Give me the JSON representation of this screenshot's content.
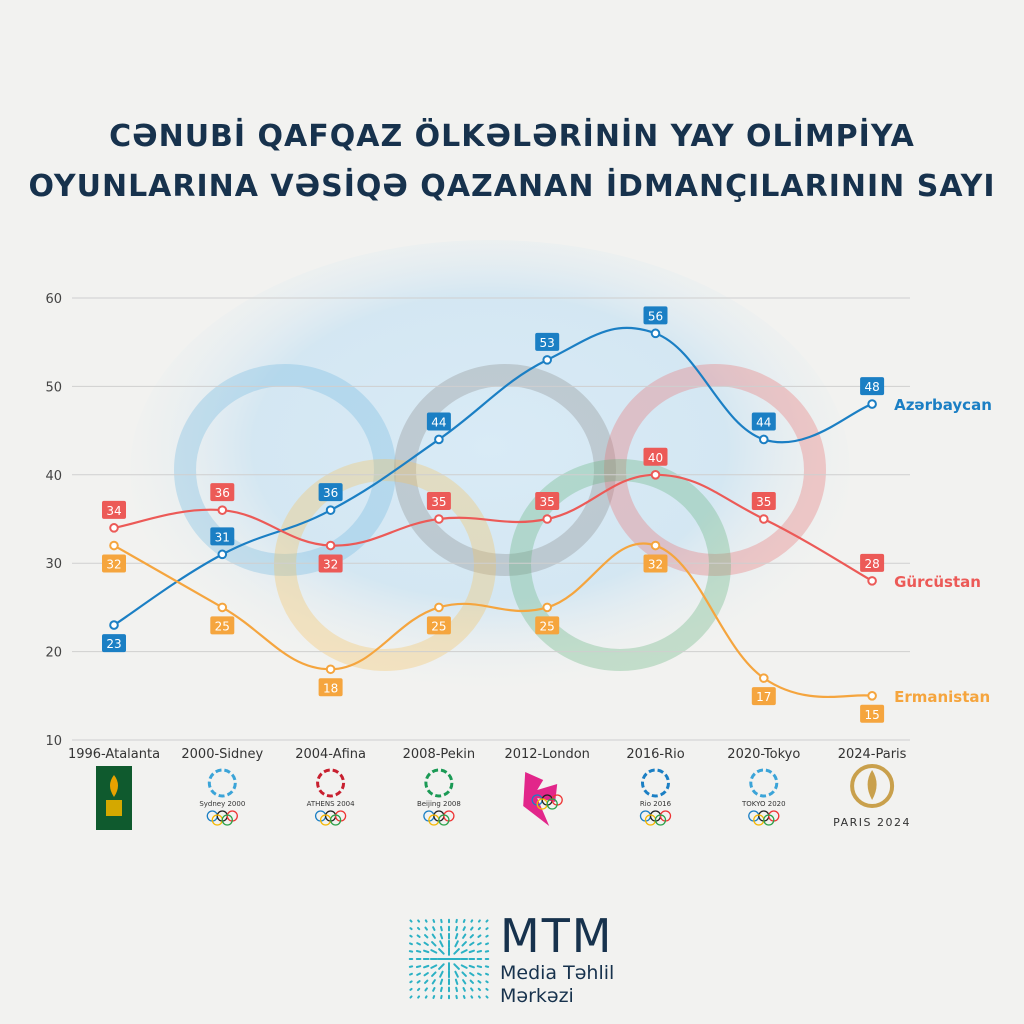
{
  "title": {
    "line1": "CƏNUBİ QAFQAZ ÖLKƏLƏRİNİN YAY OLİMPİYA",
    "line2": "OYUNLARINA VƏSİQƏ QAZANAN İDMANÇILARININ SAYI"
  },
  "chart_data": {
    "type": "line",
    "categories": [
      "1996-Atalanta",
      "2000-Sidney",
      "2004-Afina",
      "2008-Pekin",
      "2012-London",
      "2016-Rio",
      "2020-Tokyo",
      "2024-Paris"
    ],
    "series": [
      {
        "name": "Azərbaycan",
        "color": "#1b7fc4",
        "values": [
          23,
          31,
          36,
          44,
          53,
          56,
          44,
          48
        ]
      },
      {
        "name": "Gürcüstan",
        "color": "#ec5a57",
        "values": [
          34,
          36,
          32,
          35,
          35,
          40,
          35,
          28
        ]
      },
      {
        "name": "Ermanistan",
        "color": "#f5a53e",
        "values": [
          32,
          25,
          18,
          25,
          25,
          32,
          17,
          15
        ]
      }
    ],
    "ylim": [
      10,
      60
    ],
    "yticks": [
      10,
      20,
      30,
      40,
      50,
      60
    ],
    "grid": true,
    "legend": "labels at line ends (right)",
    "games_logos": [
      "Atlanta 1996",
      "Sydney 2000",
      "ATHENS 2004",
      "Beijing 2008",
      "London 2012",
      "Rio 2016",
      "TOKYO 2020",
      "PARIS 2024"
    ]
  },
  "brand": {
    "name": "MTM",
    "line1": "Media Təhlil",
    "line2": "Mərkəzi"
  },
  "colors": {
    "title": "#17324d",
    "background": "#f2f2f0",
    "grid": "#cfcfcf",
    "logo": "#2bb1c4"
  }
}
